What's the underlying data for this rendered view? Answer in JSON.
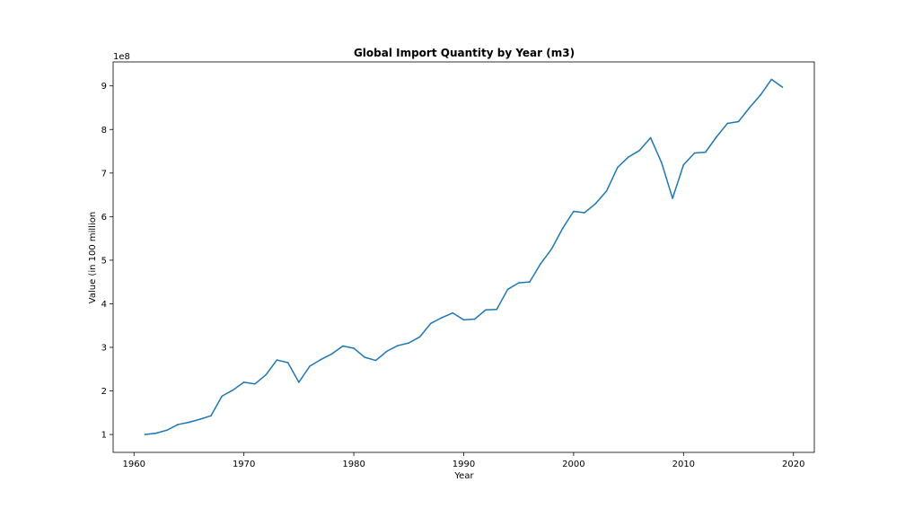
{
  "chart_data": {
    "type": "line",
    "title": "Global Import Quantity by Year (m3)",
    "xlabel": "Year",
    "ylabel": "Value (in 100 million",
    "offset_label": "1e8",
    "xlim": [
      1958.1,
      2021.9
    ],
    "ylim": [
      59000000.0,
      955000000.0
    ],
    "x_ticks": [
      1960,
      1970,
      1980,
      1990,
      2000,
      2010,
      2020
    ],
    "y_ticks": [
      1,
      2,
      3,
      4,
      5,
      6,
      7,
      8,
      9
    ],
    "y_tick_multiplier": 100000000,
    "grid": false,
    "line_color": "#1f77b4",
    "series": [
      {
        "x": [
          1961,
          1962,
          1963,
          1964,
          1965,
          1966,
          1967,
          1968,
          1969,
          1970,
          1971,
          1972,
          1973,
          1974,
          1975,
          1976,
          1977,
          1978,
          1979,
          1980,
          1981,
          1982,
          1983,
          1984,
          1985,
          1986,
          1987,
          1988,
          1989,
          1990,
          1991,
          1992,
          1993,
          1994,
          1995,
          1996,
          1997,
          1998,
          1999,
          2000,
          2001,
          2002,
          2003,
          2004,
          2005,
          2006,
          2007,
          2008,
          2009,
          2010,
          2011,
          2012,
          2013,
          2014,
          2015,
          2016,
          2017,
          2018,
          2019
        ],
        "values": [
          100000000,
          103000000,
          110000000,
          123000000,
          128000000,
          135000000,
          143000000,
          188000000,
          202000000,
          220000000,
          216000000,
          237000000,
          271000000,
          265000000,
          220000000,
          257000000,
          272000000,
          285000000,
          303000000,
          298000000,
          277000000,
          270000000,
          291000000,
          304000000,
          310000000,
          324000000,
          355000000,
          368000000,
          379000000,
          363000000,
          365000000,
          386000000,
          387000000,
          433000000,
          448000000,
          450000000,
          492000000,
          526000000,
          573000000,
          612000000,
          609000000,
          630000000,
          659000000,
          713000000,
          737000000,
          752000000,
          781000000,
          724000000,
          642000000,
          719000000,
          746000000,
          748000000,
          783000000,
          814000000,
          818000000,
          850000000,
          879000000,
          915000000,
          897000000
        ]
      }
    ]
  }
}
